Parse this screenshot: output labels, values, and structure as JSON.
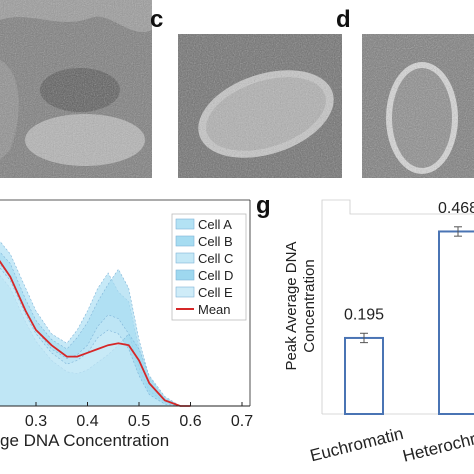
{
  "panels": {
    "c": {
      "letter": "c"
    },
    "d": {
      "letter": "d"
    },
    "g": {
      "letter": "g"
    }
  },
  "chart_data": [
    {
      "type": "area",
      "xlabel": "ge DNA Concentration",
      "ylabel": "",
      "xlim": [
        0.2,
        0.7
      ],
      "xticks": [
        "0.3",
        "0.4",
        "0.5",
        "0.6",
        "0.7"
      ],
      "grid": false,
      "legend_position": "top-right",
      "x": [
        0.2,
        0.22,
        0.25,
        0.28,
        0.3,
        0.33,
        0.36,
        0.38,
        0.4,
        0.42,
        0.44,
        0.46,
        0.48,
        0.5,
        0.52,
        0.55,
        0.58,
        0.6
      ],
      "series": [
        {
          "name": "Cell A",
          "color": "#b3e2f4",
          "values": [
            0.88,
            0.9,
            0.8,
            0.62,
            0.5,
            0.38,
            0.33,
            0.4,
            0.5,
            0.62,
            0.7,
            0.6,
            0.55,
            0.3,
            0.12,
            0.03,
            0.0,
            0.0
          ]
        },
        {
          "name": "Cell B",
          "color": "#a6dcf1",
          "values": [
            0.82,
            0.84,
            0.75,
            0.56,
            0.45,
            0.35,
            0.3,
            0.36,
            0.44,
            0.55,
            0.64,
            0.72,
            0.62,
            0.35,
            0.15,
            0.04,
            0.0,
            0.0
          ]
        },
        {
          "name": "Cell C",
          "color": "#c4e8f6",
          "values": [
            0.78,
            0.78,
            0.68,
            0.5,
            0.4,
            0.3,
            0.25,
            0.27,
            0.32,
            0.42,
            0.48,
            0.46,
            0.38,
            0.2,
            0.08,
            0.02,
            0.0,
            0.0
          ]
        },
        {
          "name": "Cell D",
          "color": "#9ed8ef",
          "values": [
            0.7,
            0.72,
            0.62,
            0.44,
            0.34,
            0.24,
            0.18,
            0.17,
            0.19,
            0.23,
            0.27,
            0.32,
            0.38,
            0.3,
            0.16,
            0.05,
            0.0,
            0.0
          ]
        },
        {
          "name": "Cell E",
          "color": "#cfecf8",
          "values": [
            0.74,
            0.76,
            0.66,
            0.48,
            0.38,
            0.28,
            0.22,
            0.24,
            0.28,
            0.36,
            0.4,
            0.38,
            0.3,
            0.16,
            0.06,
            0.01,
            0.0,
            0.0
          ]
        },
        {
          "name": "Mean",
          "color": "#d62728",
          "values": [
            0.84,
            0.8,
            0.68,
            0.5,
            0.4,
            0.32,
            0.26,
            0.26,
            0.28,
            0.3,
            0.32,
            0.33,
            0.32,
            0.24,
            0.12,
            0.03,
            0.0,
            0.0
          ]
        }
      ]
    },
    {
      "type": "bar",
      "ylabel": "Peak Average DNA Concentration",
      "ylim": [
        0,
        0.6
      ],
      "categories": [
        "Euchromatin",
        "Heterochrom"
      ],
      "values": [
        0.195,
        0.468
      ],
      "errors": [
        0.012,
        0.012
      ],
      "data_labels": [
        "0.195",
        "0.468"
      ],
      "bar_color": "#4a74b4"
    }
  ]
}
